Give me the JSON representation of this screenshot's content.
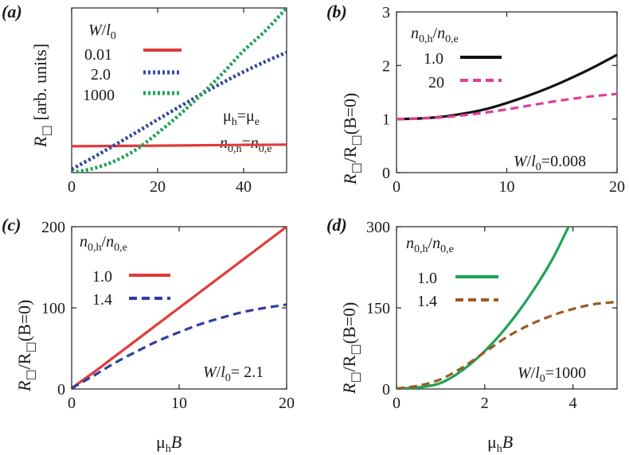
{
  "chart_data": [
    {
      "panel": "(a)",
      "type": "line",
      "xlim": [
        0,
        50
      ],
      "ylim": [
        0,
        100
      ],
      "xticks": [
        0,
        20,
        40
      ],
      "yticks": [],
      "ylabel": "R□ [arb. units]",
      "ylabel_main": "R",
      "ylabel_unit": "[arb. units]",
      "legend_title": "W/l0",
      "annotations": [
        "μh=μe",
        "n0,h=n0,e"
      ],
      "series": [
        {
          "name": "0.01",
          "color": "#e23a3a",
          "dash": "solid",
          "x": [
            0,
            10,
            20,
            30,
            40,
            50
          ],
          "y": [
            16,
            16.2,
            16.4,
            16.6,
            16.8,
            17
          ]
        },
        {
          "name": "2.0",
          "color": "#3246a0",
          "dash": "dot",
          "x": [
            0,
            5,
            10,
            15,
            20,
            25,
            30,
            35,
            40,
            45,
            50
          ],
          "y": [
            2,
            9.2,
            16.7,
            24.4,
            32.2,
            39.9,
            47.4,
            54.5,
            61.2,
            67.4,
            73
          ]
        },
        {
          "name": "1000",
          "color": "#1fa254",
          "dash": "dot",
          "x": [
            0,
            5,
            10,
            15,
            20,
            25,
            30,
            35,
            40,
            45,
            50
          ],
          "y": [
            0,
            2.5,
            7,
            14,
            24,
            35,
            47,
            60,
            74,
            86,
            100
          ]
        }
      ]
    },
    {
      "panel": "(b)",
      "type": "line",
      "xlim": [
        0,
        20
      ],
      "ylim": [
        0,
        3
      ],
      "xticks": [
        0,
        10,
        20
      ],
      "yticks": [
        0,
        1,
        2,
        3
      ],
      "ylabel_main": "R",
      "ylabel_mid": "/R",
      "ylabel_tail": "(B=0)",
      "legend_title": "n0,h/n0,e",
      "annotation": "W/l0=0.008",
      "series": [
        {
          "name": "1.0",
          "color": "#111111",
          "dash": "solid",
          "x": [
            0,
            2,
            4,
            6,
            8,
            10,
            12,
            14,
            16,
            18,
            20
          ],
          "y": [
            1,
            1.01,
            1.04,
            1.1,
            1.18,
            1.3,
            1.44,
            1.6,
            1.78,
            1.98,
            2.2
          ]
        },
        {
          "name": "20",
          "color": "#e23d9a",
          "dash": "dash",
          "x": [
            0,
            2,
            4,
            6,
            8,
            10,
            12,
            14,
            16,
            18,
            20
          ],
          "y": [
            1,
            1.01,
            1.03,
            1.07,
            1.12,
            1.18,
            1.25,
            1.32,
            1.38,
            1.43,
            1.47
          ]
        }
      ]
    },
    {
      "panel": "(c)",
      "type": "line",
      "xlim": [
        0,
        20
      ],
      "ylim": [
        0,
        200
      ],
      "xticks": [
        0,
        10,
        20
      ],
      "yticks": [
        0,
        100,
        200
      ],
      "xlabel_main": "μ",
      "xlabel_sub": "h",
      "xlabel_tail": "B",
      "ylabel_main": "R",
      "ylabel_mid": "/R",
      "ylabel_tail": "(B=0)",
      "legend_title": "n0,h/n0,e",
      "annotation": "W/l0= 2.1",
      "series": [
        {
          "name": "1.0",
          "color": "#e23a3a",
          "dash": "solid",
          "x": [
            0,
            2,
            4,
            6,
            8,
            10,
            12,
            14,
            16,
            18,
            20
          ],
          "y": [
            1,
            20,
            40,
            60,
            80,
            100,
            120,
            140,
            160,
            180,
            200
          ]
        },
        {
          "name": "1.4",
          "color": "#2f3e9e",
          "dash": "dash",
          "x": [
            0,
            2,
            4,
            6,
            8,
            10,
            12,
            14,
            16,
            18,
            20
          ],
          "y": [
            1,
            16,
            32,
            46,
            59,
            70,
            80,
            88,
            95,
            100,
            104
          ]
        }
      ]
    },
    {
      "panel": "(d)",
      "type": "line",
      "xlim": [
        0,
        5
      ],
      "ylim": [
        0,
        300
      ],
      "xticks": [
        0,
        2,
        4
      ],
      "yticks": [
        0,
        150,
        300
      ],
      "xlabel_main": "μ",
      "xlabel_sub": "h",
      "xlabel_tail": "B",
      "ylabel_main": "R",
      "ylabel_mid": "/R",
      "ylabel_tail": "(B=0)",
      "legend_title": "n0,h/n0,e",
      "annotation": "W/l0=1000",
      "series": [
        {
          "name": "1.0",
          "color": "#1fa254",
          "dash": "solid",
          "x": [
            0,
            0.5,
            1,
            1.5,
            2,
            2.5,
            3,
            3.5,
            3.9
          ],
          "y": [
            1,
            3,
            11,
            35,
            70,
            115,
            170,
            235,
            300
          ]
        },
        {
          "name": "1.4",
          "color": "#9a5b22",
          "dash": "dash",
          "x": [
            0,
            0.5,
            1,
            1.5,
            2,
            2.5,
            3,
            3.5,
            4,
            4.5,
            5
          ],
          "y": [
            1,
            6,
            18,
            40,
            68,
            96,
            118,
            135,
            148,
            157,
            161
          ]
        }
      ]
    }
  ]
}
